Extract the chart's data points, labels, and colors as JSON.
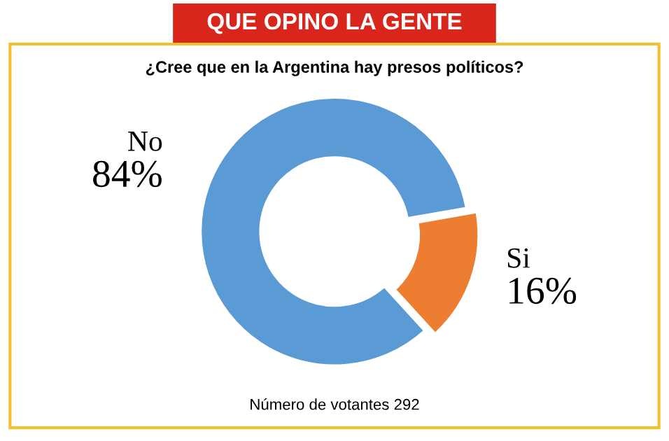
{
  "chart_data": {
    "type": "donut",
    "title": "QUE OPINO LA GENTE",
    "subtitle": "¿Cree que en la Argentina hay presos políticos?",
    "categories": [
      "No",
      "Si"
    ],
    "values": [
      84,
      16
    ],
    "colors": [
      "#5b9bd5",
      "#ed7d31"
    ],
    "value_labels": [
      "84%",
      "16%"
    ],
    "legend": false,
    "annotations": [
      "Número de votantes 292"
    ]
  }
}
